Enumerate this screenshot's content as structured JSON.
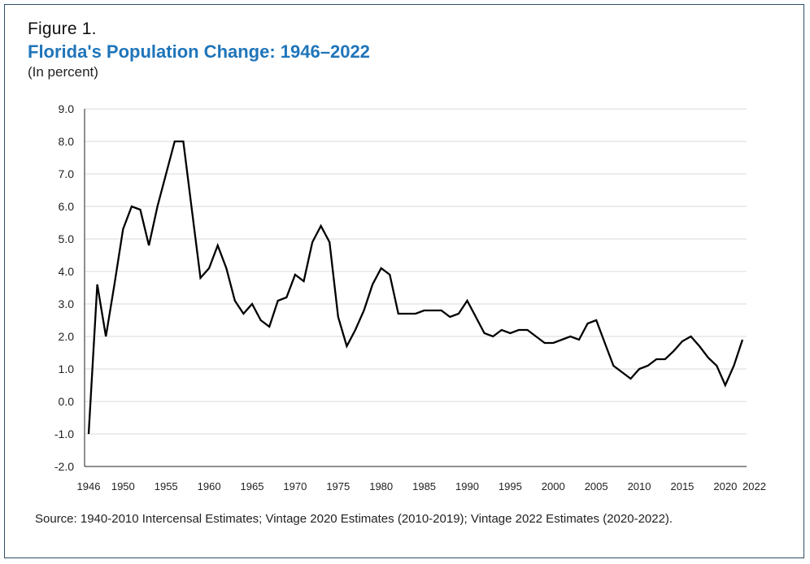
{
  "figure_label": "Figure 1.",
  "source": "Source: 1940-2010 Intercensal Estimates; Vintage 2020 Estimates (2010-2019); Vintage 2022 Estimates (2020-2022).",
  "colors": {
    "title": "#1f75ba",
    "line": "#000000",
    "grid": "#d9d9d9",
    "frame": "#2f4e68"
  },
  "chart_data": {
    "type": "line",
    "title": "Florida's Population Change: 1946–2022",
    "subtitle": "(In percent)",
    "xlabel": "",
    "ylabel": "",
    "ylim": [
      -2.0,
      9.0
    ],
    "xlim": [
      1946,
      2022
    ],
    "yticks": [
      -2.0,
      -1.0,
      0.0,
      1.0,
      2.0,
      3.0,
      4.0,
      5.0,
      6.0,
      7.0,
      8.0,
      9.0
    ],
    "ytick_labels": [
      "-2.0",
      "-1.0",
      "0.0",
      "1.0",
      "2.0",
      "3.0",
      "4.0",
      "5.0",
      "6.0",
      "7.0",
      "8.0",
      "9.0"
    ],
    "xticks": [
      1946,
      1950,
      1955,
      1960,
      1965,
      1970,
      1975,
      1980,
      1985,
      1990,
      1995,
      2000,
      2005,
      2010,
      2015,
      2020,
      2022
    ],
    "xtick_labels": [
      "1946",
      "1950",
      "1955",
      "1960",
      "1965",
      "1970",
      "1975",
      "1980",
      "1985",
      "1990",
      "1995",
      "2000",
      "2005",
      "2010",
      "2015",
      "2020",
      "2022"
    ],
    "grid": true,
    "series": [
      {
        "name": "Population change",
        "x": [
          1946,
          1947,
          1948,
          1949,
          1950,
          1951,
          1952,
          1953,
          1954,
          1955,
          1956,
          1957,
          1958,
          1959,
          1960,
          1961,
          1962,
          1963,
          1964,
          1965,
          1966,
          1967,
          1968,
          1969,
          1970,
          1971,
          1972,
          1973,
          1974,
          1975,
          1976,
          1977,
          1978,
          1979,
          1980,
          1981,
          1982,
          1983,
          1984,
          1985,
          1986,
          1987,
          1988,
          1989,
          1990,
          1991,
          1992,
          1993,
          1994,
          1995,
          1996,
          1997,
          1998,
          1999,
          2000,
          2001,
          2002,
          2003,
          2004,
          2005,
          2006,
          2007,
          2008,
          2009,
          2010,
          2011,
          2012,
          2013,
          2014,
          2015,
          2016,
          2017,
          2018,
          2019,
          2020,
          2021,
          2022
        ],
        "values": [
          -1.0,
          3.6,
          2.0,
          3.6,
          5.3,
          6.0,
          5.9,
          4.8,
          6.0,
          7.0,
          8.0,
          8.0,
          5.9,
          3.8,
          4.1,
          4.8,
          4.1,
          3.1,
          2.7,
          3.0,
          2.5,
          2.3,
          3.1,
          3.2,
          3.9,
          3.7,
          4.9,
          5.4,
          4.9,
          2.6,
          1.7,
          2.2,
          2.8,
          3.6,
          4.1,
          3.9,
          2.7,
          2.7,
          2.7,
          2.8,
          2.8,
          2.8,
          2.6,
          2.7,
          3.1,
          2.6,
          2.1,
          2.0,
          2.2,
          2.1,
          2.2,
          2.2,
          2.0,
          1.8,
          1.8,
          1.9,
          2.0,
          1.9,
          2.4,
          2.5,
          1.8,
          1.1,
          0.9,
          0.7,
          1.0,
          1.1,
          1.3,
          1.3,
          1.55,
          1.85,
          2.0,
          1.7,
          1.35,
          1.1,
          0.5,
          1.1,
          1.9
        ]
      }
    ]
  }
}
